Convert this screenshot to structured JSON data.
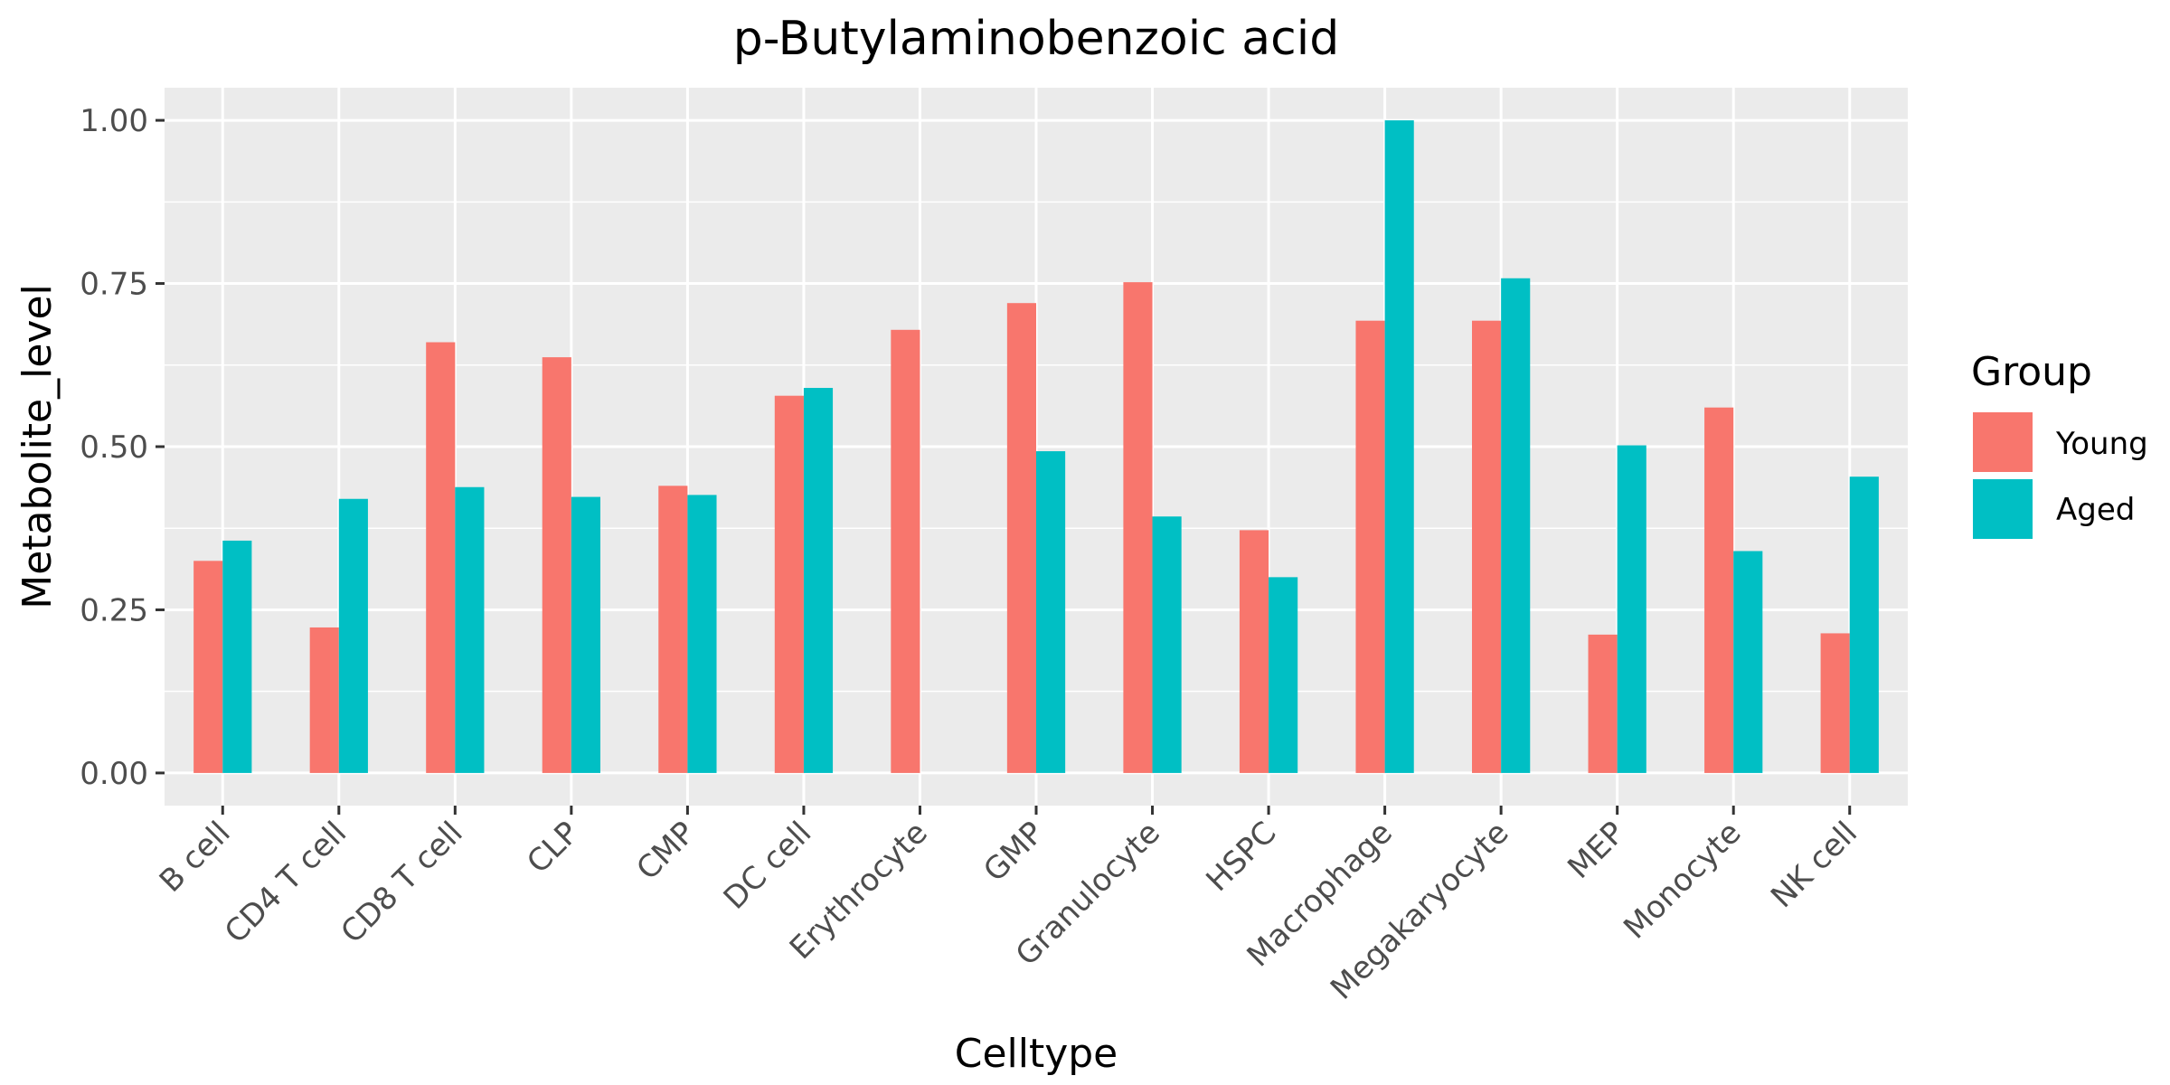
{
  "chart_data": {
    "type": "bar",
    "title": "p-Butylaminobenzoic acid",
    "xlabel": "Celltype",
    "ylabel": "Metabolite_level",
    "ylim": [
      -0.05,
      1.05
    ],
    "yticks": [
      0,
      0.25,
      0.5,
      0.75,
      1
    ],
    "ytick_labels": [
      "0.00",
      "0.25",
      "0.50",
      "0.75",
      "1.00"
    ],
    "grid": true,
    "legend": {
      "title": "Group",
      "placement": "right"
    },
    "categories": [
      "B cell",
      "CD4 T cell",
      "CD8 T cell",
      "CLP",
      "CMP",
      "DC cell",
      "Erythrocyte",
      "GMP",
      "Granulocyte",
      "HSPC",
      "Macrophage",
      "Megakaryocyte",
      "MEP",
      "Monocyte",
      "NK cell"
    ],
    "series": [
      {
        "name": "Young",
        "color": "#f8766d",
        "values": [
          0.325,
          0.223,
          0.66,
          0.637,
          0.44,
          0.578,
          0.679,
          0.72,
          0.752,
          0.372,
          0.693,
          0.693,
          0.212,
          0.56,
          0.214
        ]
      },
      {
        "name": "Aged",
        "color": "#00bfc4",
        "values": [
          0.356,
          0.42,
          0.438,
          0.423,
          0.426,
          0.59,
          0,
          0.493,
          0.393,
          0.3,
          1.0,
          0.758,
          0.502,
          0.34,
          0.454
        ]
      }
    ]
  },
  "colors": {
    "panel_background": "#ebebeb",
    "grid_line": "#ffffff",
    "tick_mark": "#333333"
  }
}
